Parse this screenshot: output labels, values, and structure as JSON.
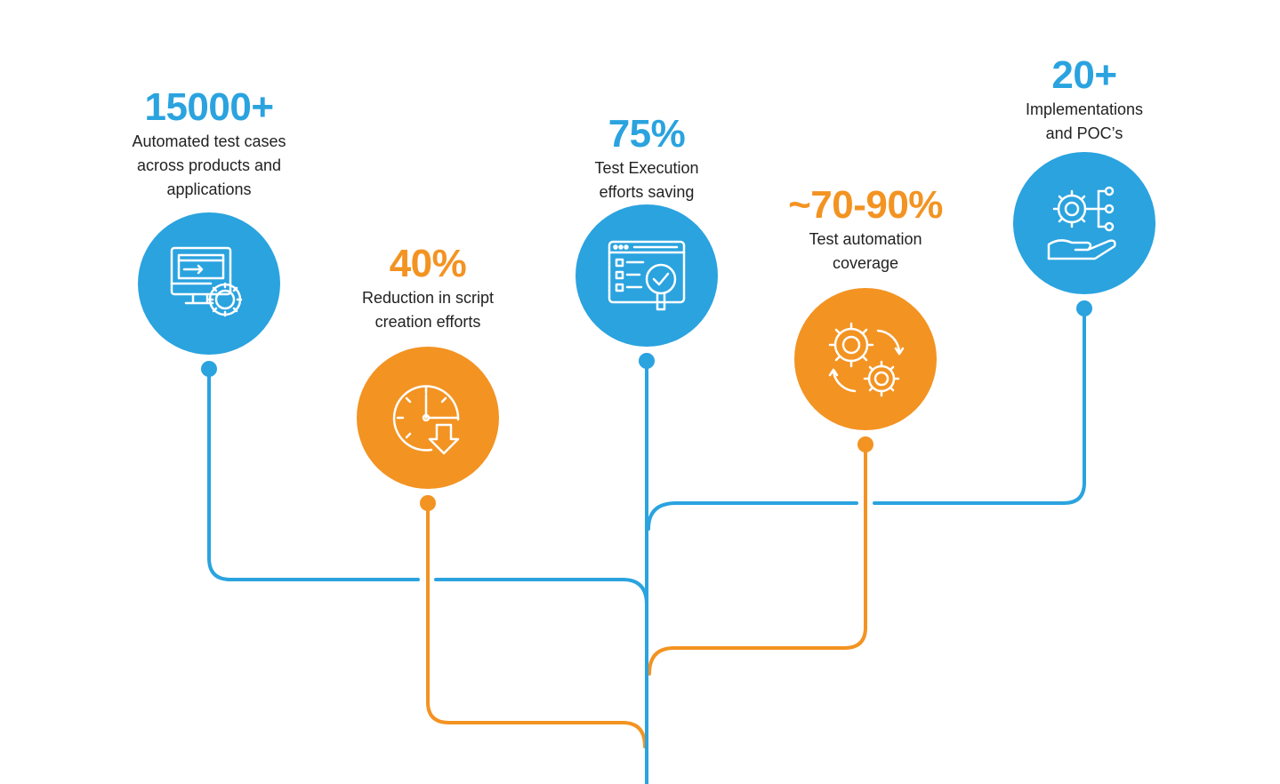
{
  "colors": {
    "blue": "#2aa3df",
    "orange": "#f39322",
    "text": "#222222",
    "background": "#ffffff"
  },
  "stats": [
    {
      "value": "15000+",
      "description": "Automated test cases\nacross products and\napplications",
      "color": "blue",
      "icon": "monitor-gear-icon"
    },
    {
      "value": "40%",
      "description": "Reduction in script\ncreation efforts",
      "color": "orange",
      "icon": "clock-download-icon"
    },
    {
      "value": "75%",
      "description": "Test Execution\nefforts saving",
      "color": "blue",
      "icon": "browser-checklist-search-icon"
    },
    {
      "value": "~70-90%",
      "description": "Test automation\ncoverage",
      "color": "orange",
      "icon": "gears-cycle-icon"
    },
    {
      "value": "20+",
      "description": "Implementations\nand POC’s",
      "color": "blue",
      "icon": "hand-gear-network-icon"
    }
  ]
}
